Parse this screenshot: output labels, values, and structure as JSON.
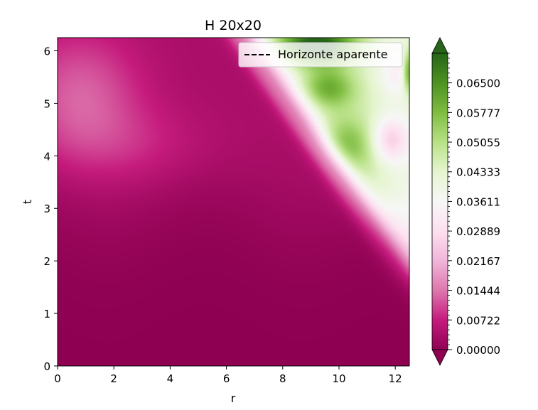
{
  "chart_data": {
    "type": "heatmap",
    "title": "H 20x20",
    "xlabel": "r",
    "ylabel": "t",
    "xlim": [
      0,
      12.5
    ],
    "ylim": [
      0,
      6.25
    ],
    "x_ticks": [
      0,
      2,
      4,
      6,
      8,
      10,
      12
    ],
    "y_ticks": [
      0,
      1,
      2,
      3,
      4,
      5,
      6
    ],
    "colormap": "PiYG",
    "colormap_stops": [
      "#8e0152",
      "#c51b7d",
      "#de77ae",
      "#f1b6da",
      "#fde0ef",
      "#f7f7f7",
      "#e6f5d0",
      "#b8e186",
      "#7fbc41",
      "#4d9221",
      "#276419"
    ],
    "colorbar": {
      "ticks": [
        "0.00000",
        "0.00722",
        "0.01444",
        "0.02167",
        "0.02889",
        "0.03611",
        "0.04333",
        "0.05055",
        "0.05777",
        "0.06500"
      ],
      "vmin": 0.0,
      "vmax": 0.0722,
      "extend": "both"
    },
    "legend": {
      "position": "top-right",
      "entries": [
        {
          "label": "Horizonte aparente",
          "style": "dashed",
          "color": "#000000"
        }
      ]
    },
    "features": [
      {
        "description": "wave front starts near r=12.5,t=2 and rises to r=6.5,t=6.25",
        "front_r_at_t0": 15.0,
        "front_slope_dr_dt": -1.3
      },
      {
        "description": "light region behind front",
        "value_range": [
          0.03,
          0.06
        ]
      },
      {
        "description": "green maximum",
        "r": 9.2,
        "t": 6.1,
        "value": 0.065
      },
      {
        "description": "pink blob",
        "r": 0.8,
        "t": 5.2,
        "value": 0.012
      },
      {
        "description": "pink spot",
        "r": 11.8,
        "t": 4.3,
        "value": 0.022
      }
    ]
  }
}
